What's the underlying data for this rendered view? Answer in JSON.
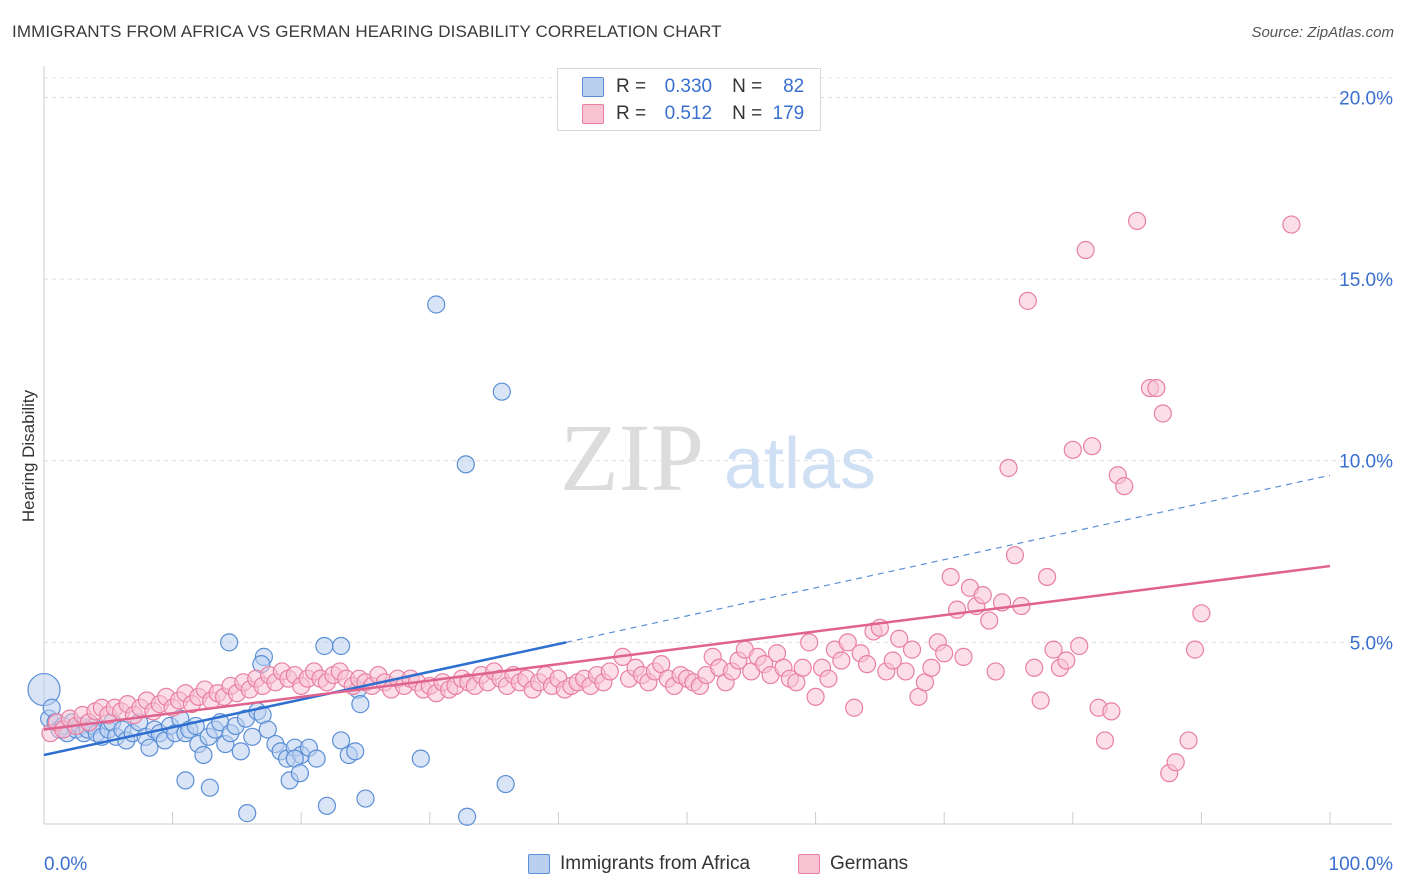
{
  "title": "IMMIGRANTS FROM AFRICA VS GERMAN HEARING DISABILITY CORRELATION CHART",
  "source": "Source: ZipAtlas.com",
  "watermark": {
    "zip": "ZIP",
    "atlas": "atlas"
  },
  "legend": {
    "r_label": "R =",
    "n_label": "N =",
    "rows": [
      {
        "r": "0.330",
        "n": "82",
        "color": "#5b8fd6",
        "fill": "#b9d0f0"
      },
      {
        "r": "0.512",
        "n": "179",
        "color": "#e97fa3",
        "fill": "#f7c3d3"
      }
    ]
  },
  "chart_data": {
    "type": "scatter",
    "xlabel": "",
    "ylabel": "Hearing Disability",
    "xlim": [
      0,
      100
    ],
    "ylim": [
      0,
      20.7
    ],
    "x_tick_labels": [
      "0.0%",
      "100.0%"
    ],
    "y_ticks": [
      5,
      10,
      15,
      20
    ],
    "y_tick_labels": [
      "5.0%",
      "10.0%",
      "15.0%",
      "20.0%"
    ],
    "grid": "horizontal dashed",
    "legend_position": "top-center",
    "series": [
      {
        "name": "Immigrants from Africa",
        "color": "#5b8fd6",
        "fill": "#b9d0f0",
        "trend": {
          "x0": 0,
          "y0": 1.9,
          "x1": 40.6,
          "y1": 5.0,
          "dashed_to": 100,
          "dashed_y": 9.6
        },
        "points": [
          [
            0.0,
            3.7
          ],
          [
            0.4,
            2.9
          ],
          [
            0.6,
            3.2
          ],
          [
            0.9,
            2.8
          ],
          [
            1.2,
            2.6
          ],
          [
            1.5,
            2.7
          ],
          [
            1.8,
            2.5
          ],
          [
            2.2,
            2.8
          ],
          [
            2.5,
            2.6
          ],
          [
            2.8,
            2.7
          ],
          [
            3.1,
            2.5
          ],
          [
            3.4,
            2.6
          ],
          [
            3.8,
            2.7
          ],
          [
            4.1,
            2.5
          ],
          [
            4.5,
            2.4
          ],
          [
            5.0,
            2.6
          ],
          [
            5.3,
            2.8
          ],
          [
            5.6,
            2.4
          ],
          [
            6.1,
            2.6
          ],
          [
            6.4,
            2.3
          ],
          [
            6.9,
            2.5
          ],
          [
            7.4,
            2.8
          ],
          [
            7.9,
            2.4
          ],
          [
            8.2,
            2.1
          ],
          [
            8.6,
            2.6
          ],
          [
            9.0,
            2.5
          ],
          [
            9.4,
            2.3
          ],
          [
            9.8,
            2.7
          ],
          [
            10.2,
            2.5
          ],
          [
            10.6,
            2.9
          ],
          [
            11.0,
            2.5
          ],
          [
            11.3,
            2.6
          ],
          [
            11.8,
            2.7
          ],
          [
            12.0,
            2.2
          ],
          [
            12.4,
            1.9
          ],
          [
            12.8,
            2.4
          ],
          [
            13.3,
            2.6
          ],
          [
            13.7,
            2.8
          ],
          [
            14.1,
            2.2
          ],
          [
            14.5,
            2.5
          ],
          [
            14.9,
            2.7
          ],
          [
            15.3,
            2.0
          ],
          [
            15.7,
            2.9
          ],
          [
            16.2,
            2.4
          ],
          [
            16.6,
            3.1
          ],
          [
            17.0,
            3.0
          ],
          [
            17.4,
            2.6
          ],
          [
            18.0,
            2.2
          ],
          [
            18.4,
            2.0
          ],
          [
            18.9,
            1.8
          ],
          [
            19.5,
            2.1
          ],
          [
            20.0,
            1.9
          ],
          [
            20.6,
            2.1
          ],
          [
            21.2,
            1.8
          ],
          [
            11.0,
            1.2
          ],
          [
            12.9,
            1.0
          ],
          [
            15.8,
            0.3
          ],
          [
            19.5,
            1.8
          ],
          [
            19.1,
            1.2
          ],
          [
            19.9,
            1.4
          ],
          [
            22.0,
            0.5
          ],
          [
            14.4,
            5.0
          ],
          [
            17.1,
            4.6
          ],
          [
            16.9,
            4.4
          ],
          [
            21.8,
            4.9
          ],
          [
            23.1,
            4.9
          ],
          [
            24.4,
            3.7
          ],
          [
            24.6,
            3.3
          ],
          [
            23.1,
            2.3
          ],
          [
            23.7,
            1.9
          ],
          [
            24.2,
            2.0
          ],
          [
            25.0,
            0.7
          ],
          [
            29.3,
            1.8
          ],
          [
            32.9,
            0.2
          ],
          [
            35.9,
            1.1
          ],
          [
            30.5,
            14.3
          ],
          [
            32.8,
            9.9
          ],
          [
            35.6,
            11.9
          ]
        ]
      },
      {
        "name": "Germans",
        "color": "#e97fa3",
        "fill": "#f7c3d3",
        "trend": {
          "x0": 0,
          "y0": 2.6,
          "x1": 100,
          "y1": 7.1
        },
        "points": [
          [
            0.5,
            2.5
          ],
          [
            1.0,
            2.8
          ],
          [
            1.5,
            2.6
          ],
          [
            2.0,
            2.9
          ],
          [
            2.5,
            2.7
          ],
          [
            3.0,
            3.0
          ],
          [
            3.5,
            2.8
          ],
          [
            4.0,
            3.1
          ],
          [
            4.5,
            3.2
          ],
          [
            5.0,
            3.0
          ],
          [
            5.5,
            3.2
          ],
          [
            6.0,
            3.1
          ],
          [
            6.5,
            3.3
          ],
          [
            7.0,
            3.0
          ],
          [
            7.5,
            3.2
          ],
          [
            8.0,
            3.4
          ],
          [
            8.5,
            3.1
          ],
          [
            9.0,
            3.3
          ],
          [
            9.5,
            3.5
          ],
          [
            10.0,
            3.2
          ],
          [
            10.5,
            3.4
          ],
          [
            11.0,
            3.6
          ],
          [
            11.5,
            3.3
          ],
          [
            12.0,
            3.5
          ],
          [
            12.5,
            3.7
          ],
          [
            13.0,
            3.4
          ],
          [
            13.5,
            3.6
          ],
          [
            14.0,
            3.5
          ],
          [
            14.5,
            3.8
          ],
          [
            15.0,
            3.6
          ],
          [
            15.5,
            3.9
          ],
          [
            16.0,
            3.7
          ],
          [
            16.5,
            4.0
          ],
          [
            17.0,
            3.8
          ],
          [
            17.5,
            4.1
          ],
          [
            18.0,
            3.9
          ],
          [
            18.5,
            4.2
          ],
          [
            19.0,
            4.0
          ],
          [
            19.5,
            4.1
          ],
          [
            20.0,
            3.8
          ],
          [
            20.5,
            4.0
          ],
          [
            21.0,
            4.2
          ],
          [
            21.5,
            4.0
          ],
          [
            22.0,
            3.9
          ],
          [
            22.5,
            4.1
          ],
          [
            23.0,
            4.2
          ],
          [
            23.5,
            4.0
          ],
          [
            24.0,
            3.8
          ],
          [
            24.5,
            4.0
          ],
          [
            25.0,
            3.9
          ],
          [
            25.5,
            3.8
          ],
          [
            26.0,
            4.1
          ],
          [
            26.5,
            3.9
          ],
          [
            27.0,
            3.7
          ],
          [
            27.5,
            4.0
          ],
          [
            28.0,
            3.8
          ],
          [
            28.5,
            4.0
          ],
          [
            29.0,
            3.9
          ],
          [
            29.5,
            3.7
          ],
          [
            30.0,
            3.8
          ],
          [
            30.5,
            3.6
          ],
          [
            31.0,
            3.9
          ],
          [
            31.5,
            3.7
          ],
          [
            32.0,
            3.8
          ],
          [
            32.5,
            4.0
          ],
          [
            33.0,
            3.9
          ],
          [
            33.5,
            3.8
          ],
          [
            34.0,
            4.1
          ],
          [
            34.5,
            3.9
          ],
          [
            35.0,
            4.2
          ],
          [
            35.5,
            4.0
          ],
          [
            36.0,
            3.8
          ],
          [
            36.5,
            4.1
          ],
          [
            37.0,
            3.9
          ],
          [
            37.5,
            4.0
          ],
          [
            38.0,
            3.7
          ],
          [
            38.5,
            3.9
          ],
          [
            39.0,
            4.1
          ],
          [
            39.5,
            3.8
          ],
          [
            40.0,
            4.0
          ],
          [
            40.5,
            3.7
          ],
          [
            41.0,
            3.8
          ],
          [
            41.5,
            3.9
          ],
          [
            42.0,
            4.0
          ],
          [
            42.5,
            3.8
          ],
          [
            43.0,
            4.1
          ],
          [
            43.5,
            3.9
          ],
          [
            44.0,
            4.2
          ],
          [
            45.0,
            4.6
          ],
          [
            45.5,
            4.0
          ],
          [
            46.0,
            4.3
          ],
          [
            46.5,
            4.1
          ],
          [
            47.0,
            3.9
          ],
          [
            47.5,
            4.2
          ],
          [
            48.0,
            4.4
          ],
          [
            48.5,
            4.0
          ],
          [
            49.0,
            3.8
          ],
          [
            49.5,
            4.1
          ],
          [
            50.0,
            4.0
          ],
          [
            50.5,
            3.9
          ],
          [
            51.0,
            3.8
          ],
          [
            51.5,
            4.1
          ],
          [
            52.0,
            4.6
          ],
          [
            52.5,
            4.3
          ],
          [
            53.0,
            3.9
          ],
          [
            53.5,
            4.2
          ],
          [
            54.0,
            4.5
          ],
          [
            54.5,
            4.8
          ],
          [
            55.0,
            4.2
          ],
          [
            55.5,
            4.6
          ],
          [
            56.0,
            4.4
          ],
          [
            56.5,
            4.1
          ],
          [
            57.0,
            4.7
          ],
          [
            57.5,
            4.3
          ],
          [
            58.0,
            4.0
          ],
          [
            58.5,
            3.9
          ],
          [
            59.0,
            4.3
          ],
          [
            59.5,
            5.0
          ],
          [
            60.0,
            3.5
          ],
          [
            60.5,
            4.3
          ],
          [
            61.0,
            4.0
          ],
          [
            61.5,
            4.8
          ],
          [
            62.0,
            4.5
          ],
          [
            62.5,
            5.0
          ],
          [
            63.0,
            3.2
          ],
          [
            63.5,
            4.7
          ],
          [
            64.0,
            4.4
          ],
          [
            64.5,
            5.3
          ],
          [
            65.0,
            5.4
          ],
          [
            65.5,
            4.2
          ],
          [
            66.0,
            4.5
          ],
          [
            66.5,
            5.1
          ],
          [
            67.0,
            4.2
          ],
          [
            67.5,
            4.8
          ],
          [
            68.0,
            3.5
          ],
          [
            68.5,
            3.9
          ],
          [
            69.0,
            4.3
          ],
          [
            69.5,
            5.0
          ],
          [
            70.0,
            4.7
          ],
          [
            70.5,
            6.8
          ],
          [
            71.0,
            5.9
          ],
          [
            71.5,
            4.6
          ],
          [
            72.0,
            6.5
          ],
          [
            72.5,
            6.0
          ],
          [
            73.0,
            6.3
          ],
          [
            73.5,
            5.6
          ],
          [
            74.0,
            4.2
          ],
          [
            74.5,
            6.1
          ],
          [
            75.0,
            9.8
          ],
          [
            75.5,
            7.4
          ],
          [
            76.0,
            6.0
          ],
          [
            76.5,
            14.4
          ],
          [
            77.0,
            4.3
          ],
          [
            77.5,
            3.4
          ],
          [
            78.0,
            6.8
          ],
          [
            78.5,
            4.8
          ],
          [
            79.0,
            4.3
          ],
          [
            79.5,
            4.5
          ],
          [
            80.0,
            10.3
          ],
          [
            80.5,
            4.9
          ],
          [
            81.0,
            15.8
          ],
          [
            81.5,
            10.4
          ],
          [
            82.0,
            3.2
          ],
          [
            82.5,
            2.3
          ],
          [
            83.0,
            3.1
          ],
          [
            83.5,
            9.6
          ],
          [
            84.0,
            9.3
          ],
          [
            85.0,
            16.6
          ],
          [
            86.0,
            12.0
          ],
          [
            86.5,
            12.0
          ],
          [
            87.0,
            11.3
          ],
          [
            87.5,
            1.4
          ],
          [
            88.0,
            1.7
          ],
          [
            89.0,
            2.3
          ],
          [
            89.5,
            4.8
          ],
          [
            90.0,
            5.8
          ],
          [
            97.0,
            16.5
          ]
        ]
      }
    ]
  }
}
